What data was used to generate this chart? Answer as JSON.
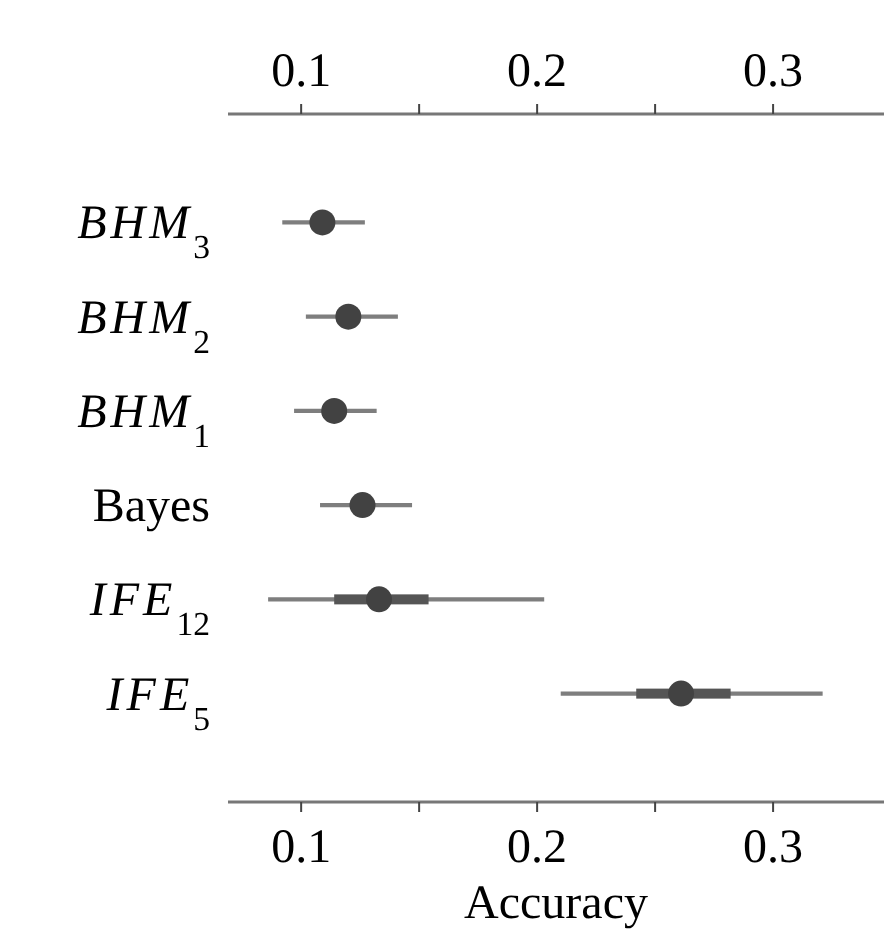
{
  "chart_data": {
    "type": "box",
    "orientation": "horizontal",
    "xlabel": "Accuracy",
    "categories": [
      "BHM$_{3}$",
      "BHM$_{2}$",
      "BHM$_{1}$",
      "Bayes",
      "IFE$_{12}$",
      "IFE$_{5}$"
    ],
    "boxes": [
      {
        "low": 0.092,
        "q1": 0.105,
        "median": 0.109,
        "q3": 0.114,
        "high": 0.127
      },
      {
        "low": 0.102,
        "q1": 0.115,
        "median": 0.12,
        "q3": 0.125,
        "high": 0.141
      },
      {
        "low": 0.097,
        "q1": 0.109,
        "median": 0.114,
        "q3": 0.119,
        "high": 0.132
      },
      {
        "low": 0.108,
        "q1": 0.121,
        "median": 0.126,
        "q3": 0.131,
        "high": 0.147
      },
      {
        "low": 0.086,
        "q1": 0.114,
        "median": 0.133,
        "q3": 0.154,
        "high": 0.203
      },
      {
        "low": 0.21,
        "q1": 0.242,
        "median": 0.261,
        "q3": 0.282,
        "high": 0.321
      }
    ],
    "color": "#555555",
    "xlim": [
      0.069,
      0.347
    ],
    "xticks": [
      0.1,
      {
        "value": 0.15,
        "label": null
      },
      0.2,
      {
        "value": 0.25,
        "label": null
      },
      0.3
    ],
    "x2lim": [
      0.069,
      0.347
    ],
    "x2ticks": [
      0.1,
      {
        "value": 0.15,
        "label": null
      },
      0.2,
      {
        "value": 0.25,
        "label": null
      },
      0.3
    ],
    "grid": false
  }
}
